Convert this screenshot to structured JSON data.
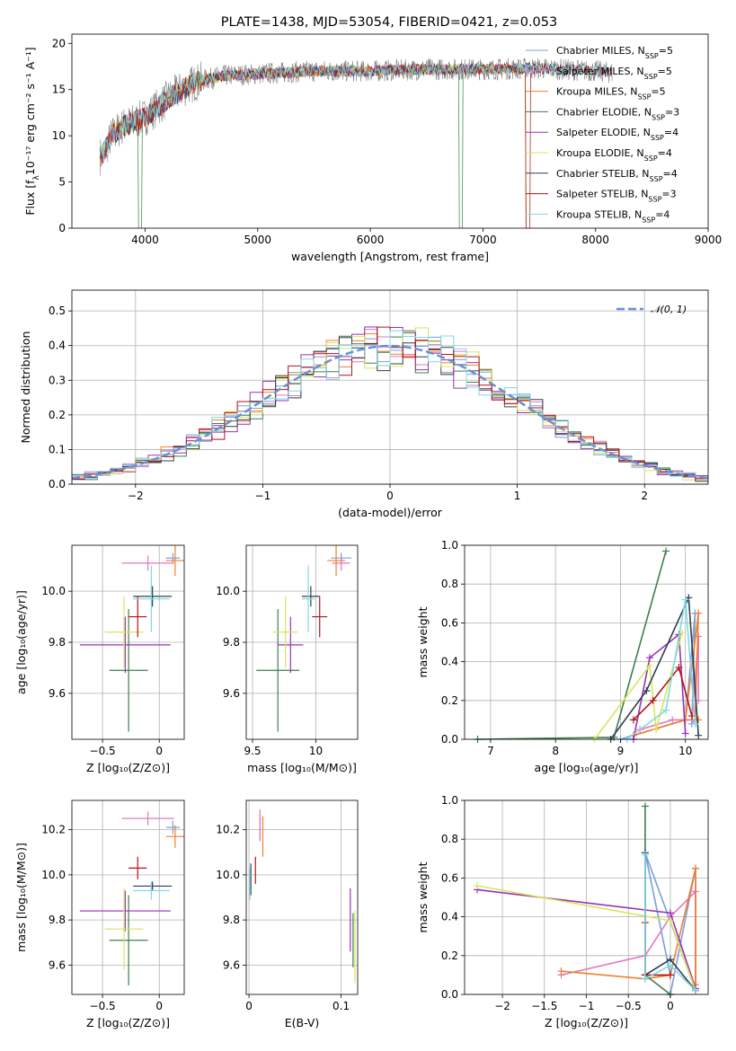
{
  "colors": {
    "chabrier_miles": "#7b9fdb",
    "salpeter_miles": "#e377c2",
    "kroupa_miles": "#f07f2e",
    "chabrier_elodie": "#3f7f4f",
    "salpeter_elodie": "#9932b4",
    "kroupa_elodie": "#d8e65a",
    "chabrier_stelib": "#2f3f4f",
    "salpeter_stelib": "#b21414",
    "kroupa_stelib": "#7fd8e6",
    "data": "#808080",
    "normal": "#6a8fd4"
  },
  "legend": [
    {
      "key": "chabrier_miles",
      "label": "Chabrier MILES, N",
      "sub": "SSP",
      "tail": "=5"
    },
    {
      "key": "salpeter_miles",
      "label": "Salpeter MILES, N",
      "sub": "SSP",
      "tail": "=5"
    },
    {
      "key": "kroupa_miles",
      "label": "Kroupa MILES, N",
      "sub": "SSP",
      "tail": "=5"
    },
    {
      "key": "chabrier_elodie",
      "label": "Chabrier ELODIE, N",
      "sub": "SSP",
      "tail": "=3"
    },
    {
      "key": "salpeter_elodie",
      "label": "Salpeter ELODIE, N",
      "sub": "SSP",
      "tail": "=4"
    },
    {
      "key": "kroupa_elodie",
      "label": "Kroupa ELODIE, N",
      "sub": "SSP",
      "tail": "=4"
    },
    {
      "key": "chabrier_stelib",
      "label": "Chabrier STELIB, N",
      "sub": "SSP",
      "tail": "=4"
    },
    {
      "key": "salpeter_stelib",
      "label": "Salpeter STELIB, N",
      "sub": "SSP",
      "tail": "=3"
    },
    {
      "key": "kroupa_stelib",
      "label": "Kroupa STELIB, N",
      "sub": "SSP",
      "tail": "=4"
    }
  ],
  "chart_data": [
    {
      "id": "spectrum",
      "type": "line",
      "title": "PLATE=1438, MJD=53054, FIBERID=0421, z=0.053",
      "xlabel": "wavelength [Angstrom, rest frame]",
      "ylabel_main": "Flux [f",
      "ylabel_sub": "λ",
      "ylabel_tail": "10⁻¹⁷ erg cm⁻² s⁻¹ A⁻¹]",
      "xlim": [
        3350,
        9000
      ],
      "ylim": [
        0,
        21
      ],
      "xticks": [
        4000,
        5000,
        6000,
        7000,
        8000,
        9000
      ],
      "yticks": [
        0,
        5,
        10,
        15,
        20
      ],
      "continuum": [
        [
          3580,
          7.5
        ],
        [
          3650,
          8.5
        ],
        [
          3700,
          10
        ],
        [
          3800,
          11
        ],
        [
          3900,
          11.5
        ],
        [
          4000,
          12
        ],
        [
          4100,
          13
        ],
        [
          4200,
          14
        ],
        [
          4300,
          14.8
        ],
        [
          4400,
          15.5
        ],
        [
          4500,
          16
        ],
        [
          4700,
          16.5
        ],
        [
          5000,
          16.7
        ],
        [
          5500,
          17
        ],
        [
          6000,
          17
        ],
        [
          6500,
          17.2
        ],
        [
          7000,
          17.2
        ],
        [
          7500,
          17.3
        ],
        [
          8000,
          17
        ],
        [
          8400,
          16.5
        ],
        [
          8800,
          16
        ]
      ]
    },
    {
      "id": "residuals",
      "type": "bar",
      "xlabel": "(data-model)/error",
      "ylabel": "Normed distribution",
      "xlim": [
        -2.5,
        2.5
      ],
      "ylim": [
        0,
        0.56
      ],
      "xticks": [
        -2,
        -1,
        0,
        1,
        2
      ],
      "yticks": [
        0.0,
        0.1,
        0.2,
        0.3,
        0.4,
        0.5
      ],
      "bin_width": 0.1,
      "normal_label": "𝒩(0, 1)"
    },
    {
      "id": "age_vs_Z",
      "type": "scatter",
      "xlabel": "Z [log₁₀(Z/Z⊙)]",
      "ylabel": "age  [log₁₀(age/yr)]",
      "xlim": [
        -0.77,
        0.22
      ],
      "ylim": [
        9.42,
        10.18
      ],
      "xticks": [
        -0.5,
        0.0
      ],
      "yticks": [
        9.6,
        9.8,
        10.0
      ],
      "points": [
        {
          "key": "chabrier_miles",
          "x": 0.12,
          "xerr": 0.06,
          "y": 10.13,
          "yerr": 0.02
        },
        {
          "key": "salpeter_miles",
          "x": -0.1,
          "xerr": 0.23,
          "y": 10.11,
          "yerr": 0.03
        },
        {
          "key": "kroupa_miles",
          "x": 0.14,
          "xerr": 0.08,
          "y": 10.12,
          "yerr": 0.06
        },
        {
          "key": "chabrier_elodie",
          "x": -0.27,
          "xerr": 0.17,
          "y": 9.69,
          "yerr": 0.24
        },
        {
          "key": "salpeter_elodie",
          "x": -0.3,
          "xerr": 0.4,
          "y": 9.79,
          "yerr": 0.11
        },
        {
          "key": "kroupa_elodie",
          "x": -0.31,
          "xerr": 0.17,
          "y": 9.84,
          "yerr": 0.14
        },
        {
          "key": "chabrier_stelib",
          "x": -0.06,
          "xerr": 0.17,
          "y": 9.98,
          "yerr": 0.04
        },
        {
          "key": "salpeter_stelib",
          "x": -0.19,
          "xerr": 0.08,
          "y": 9.9,
          "yerr": 0.08
        },
        {
          "key": "kroupa_stelib",
          "x": -0.07,
          "xerr": 0.16,
          "y": 9.97,
          "yerr": 0.13
        }
      ]
    },
    {
      "id": "age_vs_mass",
      "type": "scatter",
      "xlabel": "mass [log₁₀(M/M⊙)]",
      "ylabel": "",
      "xlim": [
        9.45,
        10.33
      ],
      "ylim": [
        9.42,
        10.18
      ],
      "xticks": [
        9.5,
        10.0
      ],
      "yticks": [
        9.6,
        9.8,
        10.0
      ],
      "points": [
        {
          "key": "chabrier_miles",
          "x": 10.2,
          "xerr": 0.08,
          "y": 10.13,
          "yerr": 0.02
        },
        {
          "key": "salpeter_miles",
          "x": 10.2,
          "xerr": 0.07,
          "y": 10.11,
          "yerr": 0.03
        },
        {
          "key": "kroupa_miles",
          "x": 10.16,
          "xerr": 0.07,
          "y": 10.12,
          "yerr": 0.06
        },
        {
          "key": "chabrier_elodie",
          "x": 9.7,
          "xerr": 0.17,
          "y": 9.69,
          "yerr": 0.24
        },
        {
          "key": "salpeter_elodie",
          "x": 9.8,
          "xerr": 0.1,
          "y": 9.79,
          "yerr": 0.11
        },
        {
          "key": "kroupa_elodie",
          "x": 9.76,
          "xerr": 0.1,
          "y": 9.84,
          "yerr": 0.14
        },
        {
          "key": "chabrier_stelib",
          "x": 9.96,
          "xerr": 0.07,
          "y": 9.98,
          "yerr": 0.04
        },
        {
          "key": "salpeter_stelib",
          "x": 10.03,
          "xerr": 0.06,
          "y": 9.9,
          "yerr": 0.08
        },
        {
          "key": "kroupa_stelib",
          "x": 9.94,
          "xerr": 0.05,
          "y": 9.97,
          "yerr": 0.13
        }
      ]
    },
    {
      "id": "massweight_vs_age",
      "type": "line",
      "xlabel": "age  [log₁₀(age/yr)]",
      "ylabel": "mass weight",
      "xlim": [
        6.6,
        10.35
      ],
      "ylim": [
        0,
        1.0
      ],
      "xticks": [
        7,
        8,
        9,
        10
      ],
      "yticks": [
        0.0,
        0.2,
        0.4,
        0.6,
        0.8,
        1.0
      ],
      "series": [
        {
          "key": "chabrier_miles",
          "x": [
            9.0,
            10.0,
            10.15,
            10.1,
            10.15
          ],
          "y": [
            0.0,
            0.1,
            0.65,
            0.08,
            0.1
          ]
        },
        {
          "key": "salpeter_miles",
          "x": [
            9.3,
            9.8,
            10.1,
            10.2,
            10.2
          ],
          "y": [
            0.05,
            0.1,
            0.1,
            0.53,
            0.2
          ]
        },
        {
          "key": "kroupa_miles",
          "x": [
            9.2,
            10.0,
            10.2,
            10.15,
            10.2
          ],
          "y": [
            0.02,
            0.1,
            0.65,
            0.1,
            0.1
          ]
        },
        {
          "key": "chabrier_elodie",
          "x": [
            6.8,
            8.9,
            9.7
          ],
          "y": [
            0.0,
            0.01,
            0.97
          ]
        },
        {
          "key": "salpeter_elodie",
          "x": [
            9.2,
            9.45,
            9.9,
            10.0
          ],
          "y": [
            0.0,
            0.42,
            0.54,
            0.03
          ]
        },
        {
          "key": "kroupa_elodie",
          "x": [
            8.6,
            9.45,
            9.55,
            9.95
          ],
          "y": [
            0.0,
            0.38,
            0.05,
            0.55
          ]
        },
        {
          "key": "chabrier_stelib",
          "x": [
            8.85,
            9.4,
            10.05,
            10.2
          ],
          "y": [
            0.0,
            0.25,
            0.73,
            0.02
          ]
        },
        {
          "key": "salpeter_stelib",
          "x": [
            9.2,
            9.5,
            9.9,
            10.1
          ],
          "y": [
            0.1,
            0.2,
            0.37,
            0.12
          ]
        },
        {
          "key": "kroupa_stelib",
          "x": [
            9.1,
            9.7,
            10.0,
            10.15
          ],
          "y": [
            0.0,
            0.15,
            0.72,
            0.08
          ]
        }
      ]
    },
    {
      "id": "mass_vs_Z",
      "type": "scatter",
      "xlabel": "Z [log₁₀(Z/Z⊙)]",
      "ylabel": "mass [log₁₀(M/M⊙)]",
      "xlim": [
        -0.77,
        0.22
      ],
      "ylim": [
        9.47,
        10.33
      ],
      "xticks": [
        -0.5,
        0.0
      ],
      "yticks": [
        9.6,
        9.8,
        10.0,
        10.2
      ],
      "points": [
        {
          "key": "chabrier_miles",
          "x": 0.12,
          "xerr": 0.06,
          "y": 10.21,
          "yerr": 0.03
        },
        {
          "key": "salpeter_miles",
          "x": -0.1,
          "xerr": 0.23,
          "y": 10.25,
          "yerr": 0.03
        },
        {
          "key": "kroupa_miles",
          "x": 0.14,
          "xerr": 0.08,
          "y": 10.17,
          "yerr": 0.05
        },
        {
          "key": "chabrier_elodie",
          "x": -0.27,
          "xerr": 0.17,
          "y": 9.71,
          "yerr": 0.2
        },
        {
          "key": "salpeter_elodie",
          "x": -0.3,
          "xerr": 0.4,
          "y": 9.84,
          "yerr": 0.09
        },
        {
          "key": "kroupa_elodie",
          "x": -0.31,
          "xerr": 0.17,
          "y": 9.76,
          "yerr": 0.18
        },
        {
          "key": "chabrier_stelib",
          "x": -0.06,
          "xerr": 0.17,
          "y": 9.95,
          "yerr": 0.02
        },
        {
          "key": "salpeter_stelib",
          "x": -0.19,
          "xerr": 0.08,
          "y": 10.03,
          "yerr": 0.05
        },
        {
          "key": "kroupa_stelib",
          "x": -0.07,
          "xerr": 0.16,
          "y": 9.93,
          "yerr": 0.04
        }
      ]
    },
    {
      "id": "mass_vs_ebv",
      "type": "scatter",
      "xlabel": "E(B-V)",
      "ylabel": "",
      "xlim": [
        -0.003,
        0.118
      ],
      "ylim": [
        9.47,
        10.33
      ],
      "xticks": [
        0.0,
        0.1
      ],
      "yticks": [
        9.6,
        9.8,
        10.0,
        10.2
      ],
      "points": [
        {
          "key": "chabrier_miles",
          "x": 0.012,
          "xerr": 0.0,
          "y": 10.21,
          "yerr": 0.06
        },
        {
          "key": "salpeter_miles",
          "x": 0.012,
          "xerr": 0.0,
          "y": 10.22,
          "yerr": 0.07
        },
        {
          "key": "kroupa_miles",
          "x": 0.015,
          "xerr": 0.0,
          "y": 10.17,
          "yerr": 0.09
        },
        {
          "key": "chabrier_elodie",
          "x": 0.113,
          "xerr": 0.0,
          "y": 9.71,
          "yerr": 0.12
        },
        {
          "key": "salpeter_elodie",
          "x": 0.11,
          "xerr": 0.0,
          "y": 9.8,
          "yerr": 0.14
        },
        {
          "key": "kroupa_elodie",
          "x": 0.115,
          "xerr": 0.0,
          "y": 9.68,
          "yerr": 0.16
        },
        {
          "key": "chabrier_stelib",
          "x": 0.002,
          "xerr": 0.0,
          "y": 9.98,
          "yerr": 0.07
        },
        {
          "key": "salpeter_stelib",
          "x": 0.007,
          "xerr": 0.0,
          "y": 10.02,
          "yerr": 0.06
        },
        {
          "key": "kroupa_stelib",
          "x": 0.001,
          "xerr": 0.0,
          "y": 9.96,
          "yerr": 0.07
        }
      ]
    },
    {
      "id": "massweight_vs_Z",
      "type": "line",
      "xlabel": "Z [log₁₀(Z/Z⊙)]",
      "ylabel": "mass weight",
      "xlim": [
        -2.45,
        0.45
      ],
      "ylim": [
        0,
        1.0
      ],
      "xticks": [
        -2.0,
        -1.5,
        -1.0,
        -0.5,
        0.0
      ],
      "yticks": [
        0.0,
        0.2,
        0.4,
        0.6,
        0.8,
        1.0
      ],
      "series": [
        {
          "key": "chabrier_miles",
          "x": [
            0.0,
            0.3,
            0.3,
            -0.3,
            0.0
          ],
          "y": [
            0.0,
            0.65,
            0.02,
            0.73,
            0.1
          ]
        },
        {
          "key": "salpeter_miles",
          "x": [
            -1.3,
            -0.3,
            0.0,
            0.3,
            0.3
          ],
          "y": [
            0.1,
            0.2,
            0.4,
            0.53,
            0.03
          ]
        },
        {
          "key": "kroupa_miles",
          "x": [
            -1.3,
            -0.3,
            0.0,
            0.3,
            0.3
          ],
          "y": [
            0.12,
            0.08,
            0.1,
            0.65,
            0.05
          ]
        },
        {
          "key": "chabrier_elodie",
          "x": [
            -0.3,
            -0.3,
            0.0
          ],
          "y": [
            0.97,
            0.1,
            0.0
          ]
        },
        {
          "key": "salpeter_elodie",
          "x": [
            -2.3,
            0.0,
            0.3
          ],
          "y": [
            0.54,
            0.42,
            0.03
          ]
        },
        {
          "key": "kroupa_elodie",
          "x": [
            -2.3,
            0.0,
            0.3
          ],
          "y": [
            0.56,
            0.38,
            0.02
          ]
        },
        {
          "key": "chabrier_stelib",
          "x": [
            -0.3,
            -0.3,
            0.0,
            0.3
          ],
          "y": [
            0.73,
            0.1,
            0.18,
            0.02
          ]
        },
        {
          "key": "salpeter_stelib",
          "x": [
            -0.3,
            -0.3,
            0.0
          ],
          "y": [
            0.37,
            0.1,
            0.1
          ]
        },
        {
          "key": "kroupa_stelib",
          "x": [
            -0.3,
            -0.3,
            0.0,
            0.3
          ],
          "y": [
            0.72,
            0.08,
            0.15,
            0.02
          ]
        }
      ]
    }
  ]
}
